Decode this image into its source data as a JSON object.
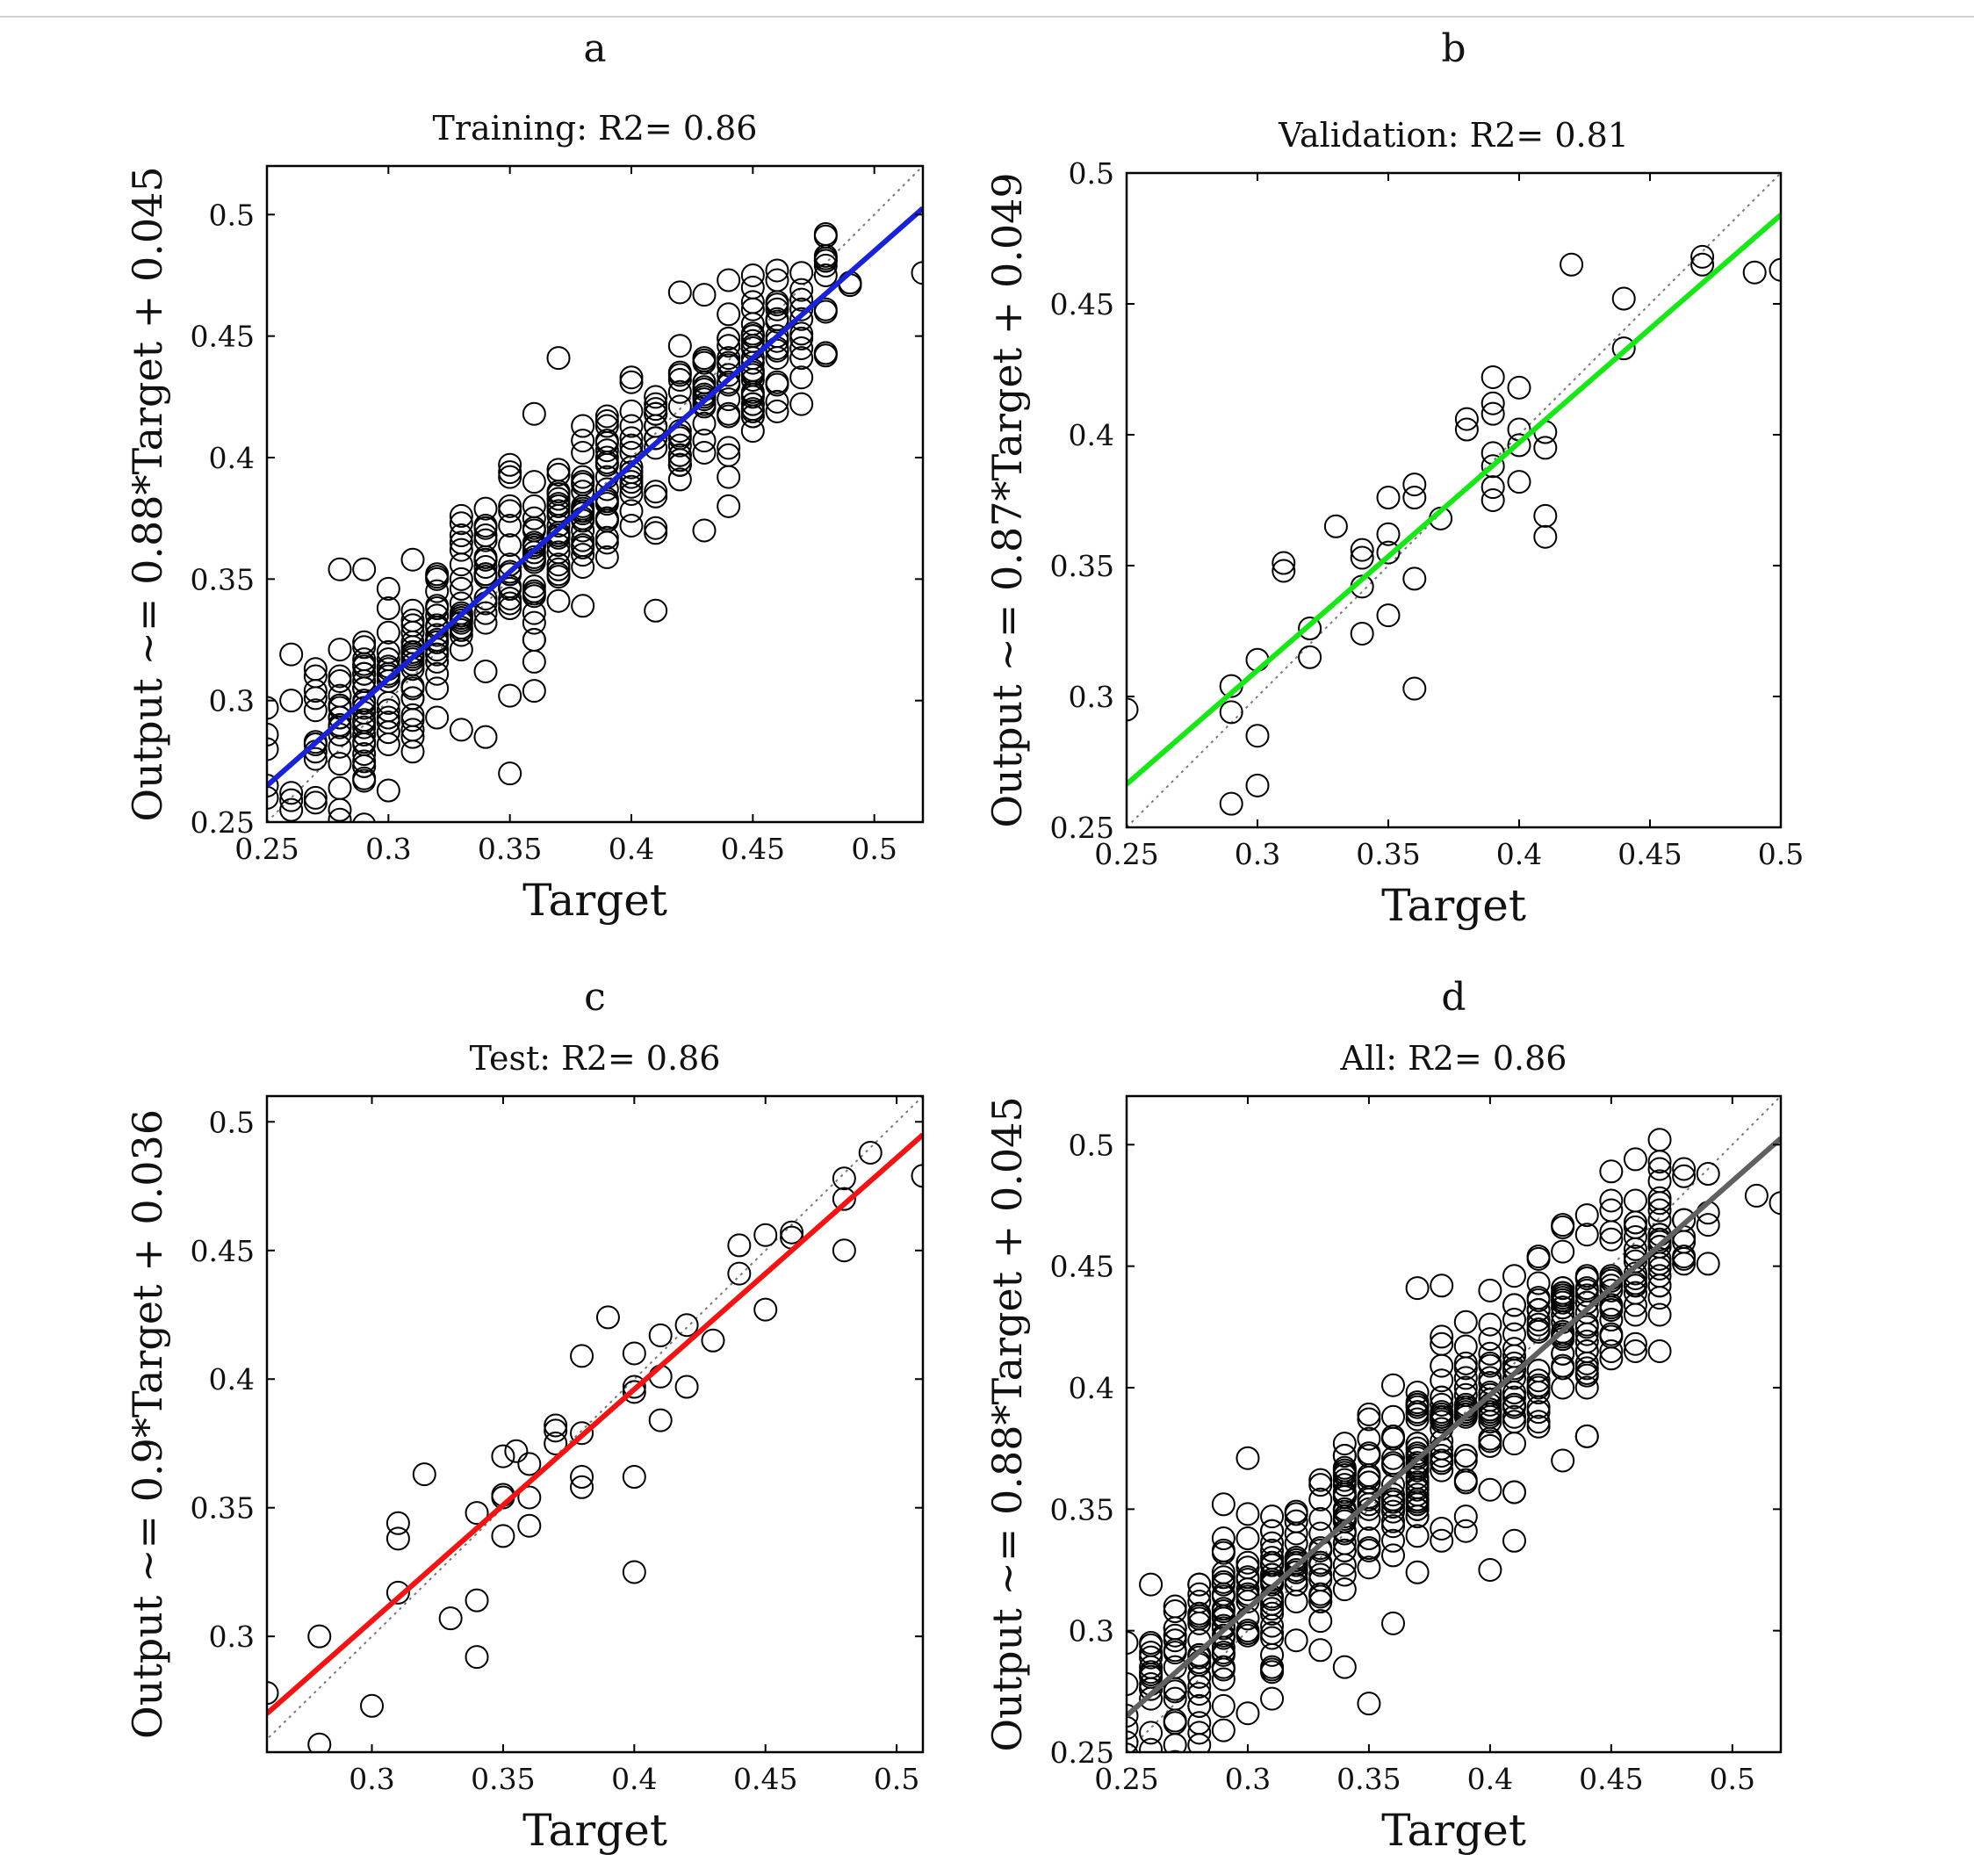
{
  "chart_data": [
    {
      "id": "a",
      "type": "scatter",
      "panel_letter": "a",
      "title": "Training: R2= 0.86",
      "xlabel": "Target",
      "ylabel": "Output ~= 0.88*Target + 0.045",
      "xlim": [
        0.25,
        0.52
      ],
      "ylim": [
        0.25,
        0.52
      ],
      "xticks": [
        0.25,
        0.3,
        0.35,
        0.4,
        0.45,
        0.5
      ],
      "yticks": [
        0.25,
        0.3,
        0.35,
        0.4,
        0.45,
        0.5
      ],
      "fit": {
        "slope": 0.88,
        "intercept": 0.045,
        "color": "#1a22d6"
      },
      "identity_line": true,
      "points_generated": true,
      "n_points": 420,
      "seed": 11,
      "spread": 0.018,
      "xrange": [
        0.25,
        0.5
      ],
      "points": [
        [
          0.26,
          0.319
        ],
        [
          0.37,
          0.441
        ],
        [
          0.41,
          0.337
        ],
        [
          0.35,
          0.27
        ],
        [
          0.34,
          0.285
        ],
        [
          0.36,
          0.304
        ],
        [
          0.35,
          0.302
        ],
        [
          0.27,
          0.26
        ],
        [
          0.52,
          0.476
        ],
        [
          0.25,
          0.26
        ],
        [
          0.27,
          0.301
        ],
        [
          0.25,
          0.265
        ],
        [
          0.43,
          0.467
        ],
        [
          0.44,
          0.38
        ],
        [
          0.43,
          0.37
        ]
      ]
    },
    {
      "id": "b",
      "type": "scatter",
      "panel_letter": "b",
      "title": "Validation: R2= 0.81",
      "xlabel": "Target",
      "ylabel": "Output ~= 0.87*Target + 0.049",
      "xlim": [
        0.25,
        0.5
      ],
      "ylim": [
        0.25,
        0.5
      ],
      "xticks": [
        0.25,
        0.3,
        0.35,
        0.4,
        0.45,
        0.5
      ],
      "yticks": [
        0.25,
        0.3,
        0.35,
        0.4,
        0.45,
        0.5
      ],
      "fit": {
        "slope": 0.87,
        "intercept": 0.049,
        "color": "#19e619"
      },
      "identity_line": true,
      "points_generated": false,
      "points": [
        [
          0.25,
          0.295
        ],
        [
          0.29,
          0.259
        ],
        [
          0.29,
          0.294
        ],
        [
          0.29,
          0.304
        ],
        [
          0.3,
          0.266
        ],
        [
          0.3,
          0.285
        ],
        [
          0.3,
          0.314
        ],
        [
          0.31,
          0.348
        ],
        [
          0.31,
          0.351
        ],
        [
          0.32,
          0.315
        ],
        [
          0.32,
          0.326
        ],
        [
          0.33,
          0.365
        ],
        [
          0.34,
          0.324
        ],
        [
          0.34,
          0.342
        ],
        [
          0.34,
          0.353
        ],
        [
          0.34,
          0.356
        ],
        [
          0.35,
          0.331
        ],
        [
          0.35,
          0.355
        ],
        [
          0.35,
          0.362
        ],
        [
          0.35,
          0.376
        ],
        [
          0.36,
          0.303
        ],
        [
          0.36,
          0.345
        ],
        [
          0.36,
          0.376
        ],
        [
          0.36,
          0.381
        ],
        [
          0.37,
          0.368
        ],
        [
          0.38,
          0.402
        ],
        [
          0.38,
          0.406
        ],
        [
          0.39,
          0.375
        ],
        [
          0.39,
          0.38
        ],
        [
          0.39,
          0.388
        ],
        [
          0.39,
          0.393
        ],
        [
          0.39,
          0.408
        ],
        [
          0.39,
          0.412
        ],
        [
          0.39,
          0.422
        ],
        [
          0.4,
          0.382
        ],
        [
          0.4,
          0.396
        ],
        [
          0.4,
          0.402
        ],
        [
          0.4,
          0.418
        ],
        [
          0.41,
          0.361
        ],
        [
          0.41,
          0.369
        ],
        [
          0.41,
          0.395
        ],
        [
          0.41,
          0.401
        ],
        [
          0.42,
          0.465
        ],
        [
          0.44,
          0.433
        ],
        [
          0.44,
          0.452
        ],
        [
          0.47,
          0.465
        ],
        [
          0.47,
          0.468
        ],
        [
          0.49,
          0.462
        ],
        [
          0.5,
          0.463
        ]
      ]
    },
    {
      "id": "c",
      "type": "scatter",
      "panel_letter": "c",
      "title": "Test: R2= 0.86",
      "xlabel": "Target",
      "ylabel": "Output ~= 0.9*Target + 0.036",
      "xlim": [
        0.26,
        0.51
      ],
      "ylim": [
        0.255,
        0.51
      ],
      "xticks": [
        0.3,
        0.35,
        0.4,
        0.45,
        0.5
      ],
      "yticks": [
        0.3,
        0.35,
        0.4,
        0.45,
        0.5
      ],
      "fit": {
        "slope": 0.9,
        "intercept": 0.036,
        "color": "#f01414"
      },
      "identity_line": true,
      "points_generated": false,
      "points": [
        [
          0.26,
          0.278
        ],
        [
          0.28,
          0.3
        ],
        [
          0.28,
          0.258
        ],
        [
          0.3,
          0.273
        ],
        [
          0.31,
          0.317
        ],
        [
          0.31,
          0.338
        ],
        [
          0.31,
          0.344
        ],
        [
          0.32,
          0.363
        ],
        [
          0.33,
          0.307
        ],
        [
          0.34,
          0.292
        ],
        [
          0.34,
          0.314
        ],
        [
          0.34,
          0.348
        ],
        [
          0.35,
          0.339
        ],
        [
          0.35,
          0.354
        ],
        [
          0.35,
          0.355
        ],
        [
          0.35,
          0.37
        ],
        [
          0.355,
          0.372
        ],
        [
          0.36,
          0.343
        ],
        [
          0.36,
          0.354
        ],
        [
          0.36,
          0.367
        ],
        [
          0.37,
          0.375
        ],
        [
          0.37,
          0.38
        ],
        [
          0.37,
          0.382
        ],
        [
          0.38,
          0.358
        ],
        [
          0.38,
          0.362
        ],
        [
          0.38,
          0.379
        ],
        [
          0.38,
          0.409
        ],
        [
          0.39,
          0.424
        ],
        [
          0.4,
          0.325
        ],
        [
          0.4,
          0.362
        ],
        [
          0.4,
          0.395
        ],
        [
          0.4,
          0.397
        ],
        [
          0.4,
          0.41
        ],
        [
          0.41,
          0.384
        ],
        [
          0.41,
          0.401
        ],
        [
          0.41,
          0.417
        ],
        [
          0.42,
          0.397
        ],
        [
          0.42,
          0.421
        ],
        [
          0.43,
          0.415
        ],
        [
          0.44,
          0.441
        ],
        [
          0.44,
          0.452
        ],
        [
          0.45,
          0.427
        ],
        [
          0.45,
          0.456
        ],
        [
          0.46,
          0.455
        ],
        [
          0.46,
          0.457
        ],
        [
          0.48,
          0.45
        ],
        [
          0.48,
          0.47
        ],
        [
          0.48,
          0.478
        ],
        [
          0.49,
          0.488
        ],
        [
          0.51,
          0.479
        ]
      ]
    },
    {
      "id": "d",
      "type": "scatter",
      "panel_letter": "d",
      "title": "All: R2= 0.86",
      "xlabel": "Target",
      "ylabel": "Output ~= 0.88*Target + 0.045",
      "xlim": [
        0.25,
        0.52
      ],
      "ylim": [
        0.25,
        0.52
      ],
      "xticks": [
        0.25,
        0.3,
        0.35,
        0.4,
        0.45,
        0.5
      ],
      "yticks": [
        0.25,
        0.3,
        0.35,
        0.4,
        0.45,
        0.5
      ],
      "fit": {
        "slope": 0.88,
        "intercept": 0.045,
        "color": "#606060"
      },
      "identity_line": true,
      "points_generated": true,
      "n_points": 500,
      "seed": 23,
      "spread": 0.019,
      "xrange": [
        0.25,
        0.5
      ],
      "points": [
        [
          0.26,
          0.319
        ],
        [
          0.37,
          0.441
        ],
        [
          0.4,
          0.325
        ],
        [
          0.41,
          0.337
        ],
        [
          0.35,
          0.27
        ],
        [
          0.34,
          0.285
        ],
        [
          0.28,
          0.258
        ],
        [
          0.29,
          0.259
        ],
        [
          0.52,
          0.476
        ],
        [
          0.51,
          0.479
        ],
        [
          0.25,
          0.295
        ],
        [
          0.43,
          0.467
        ],
        [
          0.49,
          0.488
        ],
        [
          0.44,
          0.38
        ],
        [
          0.43,
          0.37
        ],
        [
          0.36,
          0.303
        ],
        [
          0.25,
          0.26
        ],
        [
          0.25,
          0.265
        ]
      ]
    }
  ]
}
